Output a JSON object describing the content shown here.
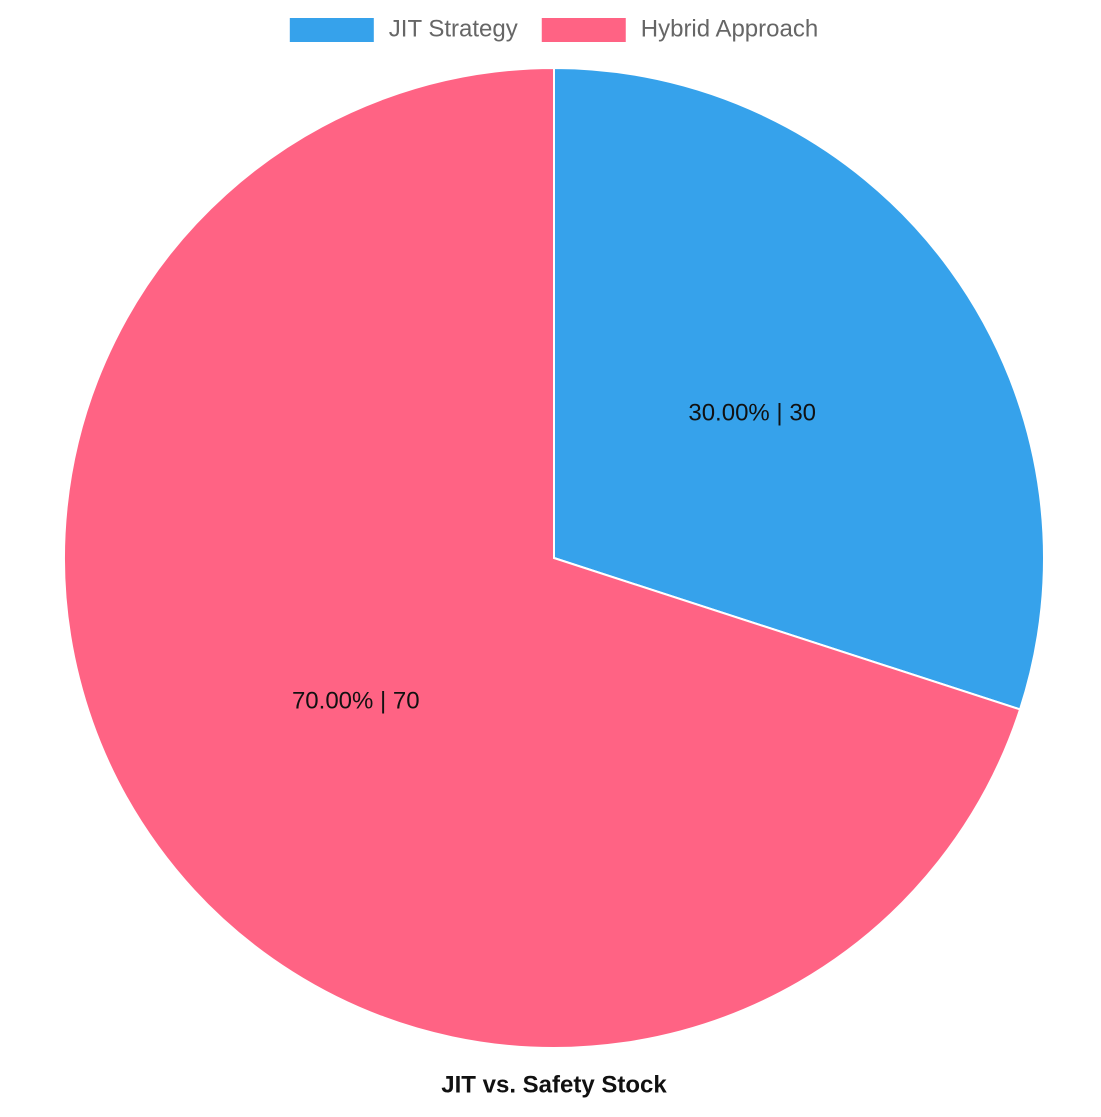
{
  "chart_data": {
    "type": "pie",
    "title": "JIT vs. Safety Stock",
    "categories": [
      "JIT Strategy",
      "Hybrid Approach"
    ],
    "values": [
      30,
      70
    ],
    "value_labels": [
      "30.00% | 30",
      "70.00% | 70"
    ],
    "colors": [
      "#36a2eb",
      "#ff6384"
    ],
    "legend": "top"
  }
}
